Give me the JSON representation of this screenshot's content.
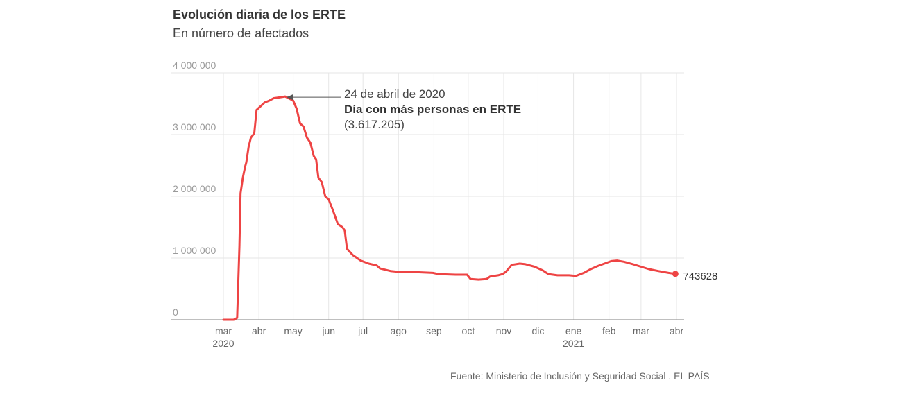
{
  "header": {
    "title": "Evolución diaria de los ERTE",
    "subtitle": "En número de afectados"
  },
  "footer": {
    "source": "Fuente: Ministerio de Inclusión y Seguridad Social . EL PAÍS"
  },
  "colors": {
    "line": "#ee4444",
    "grid": "#e6e6e6",
    "axis": "#999999"
  },
  "chart_data": {
    "type": "line",
    "title": "Evolución diaria de los ERTE",
    "subtitle": "En número de afectados",
    "xlabel": "",
    "ylabel": "",
    "ylim": [
      0,
      4000000
    ],
    "xlim": [
      "2020-03-01",
      "2021-04-01"
    ],
    "grid": true,
    "y_ticks": [
      {
        "value": 0,
        "label": "0"
      },
      {
        "value": 1000000,
        "label": "1 000 000"
      },
      {
        "value": 2000000,
        "label": "2 000 000"
      },
      {
        "value": 3000000,
        "label": "3 000 000"
      },
      {
        "value": 4000000,
        "label": "4 000 000"
      }
    ],
    "x_ticks": [
      {
        "date": "2020-03-01",
        "label": "mar",
        "year": "2020"
      },
      {
        "date": "2020-04-01",
        "label": "abr",
        "year": ""
      },
      {
        "date": "2020-05-01",
        "label": "may",
        "year": ""
      },
      {
        "date": "2020-06-01",
        "label": "jun",
        "year": ""
      },
      {
        "date": "2020-07-01",
        "label": "jul",
        "year": ""
      },
      {
        "date": "2020-08-01",
        "label": "ago",
        "year": ""
      },
      {
        "date": "2020-09-01",
        "label": "sep",
        "year": ""
      },
      {
        "date": "2020-10-01",
        "label": "oct",
        "year": ""
      },
      {
        "date": "2020-11-01",
        "label": "nov",
        "year": ""
      },
      {
        "date": "2020-12-01",
        "label": "dic",
        "year": ""
      },
      {
        "date": "2021-01-01",
        "label": "ene",
        "year": "2021"
      },
      {
        "date": "2021-02-01",
        "label": "feb",
        "year": ""
      },
      {
        "date": "2021-03-01",
        "label": "mar",
        "year": ""
      },
      {
        "date": "2021-04-01",
        "label": "abr",
        "year": ""
      }
    ],
    "series": [
      {
        "points": [
          [
            "2020-03-01",
            0
          ],
          [
            "2020-03-10",
            0
          ],
          [
            "2020-03-13",
            30000
          ],
          [
            "2020-03-15",
            1200000
          ],
          [
            "2020-03-16",
            2050000
          ],
          [
            "2020-03-18",
            2300000
          ],
          [
            "2020-03-20",
            2480000
          ],
          [
            "2020-03-21",
            2550000
          ],
          [
            "2020-03-23",
            2800000
          ],
          [
            "2020-03-25",
            2950000
          ],
          [
            "2020-03-28",
            3020000
          ],
          [
            "2020-03-30",
            3400000
          ],
          [
            "2020-04-02",
            3450000
          ],
          [
            "2020-04-06",
            3520000
          ],
          [
            "2020-04-10",
            3550000
          ],
          [
            "2020-04-14",
            3590000
          ],
          [
            "2020-04-18",
            3600000
          ],
          [
            "2020-04-24",
            3617205
          ],
          [
            "2020-04-28",
            3580000
          ],
          [
            "2020-05-01",
            3550000
          ],
          [
            "2020-05-04",
            3420000
          ],
          [
            "2020-05-07",
            3180000
          ],
          [
            "2020-05-10",
            3130000
          ],
          [
            "2020-05-13",
            2950000
          ],
          [
            "2020-05-16",
            2870000
          ],
          [
            "2020-05-19",
            2650000
          ],
          [
            "2020-05-21",
            2600000
          ],
          [
            "2020-05-23",
            2300000
          ],
          [
            "2020-05-26",
            2230000
          ],
          [
            "2020-05-29",
            2000000
          ],
          [
            "2020-06-01",
            1950000
          ],
          [
            "2020-06-05",
            1760000
          ],
          [
            "2020-06-09",
            1550000
          ],
          [
            "2020-06-13",
            1500000
          ],
          [
            "2020-06-15",
            1450000
          ],
          [
            "2020-06-17",
            1150000
          ],
          [
            "2020-06-22",
            1050000
          ],
          [
            "2020-06-29",
            960000
          ],
          [
            "2020-07-06",
            910000
          ],
          [
            "2020-07-13",
            880000
          ],
          [
            "2020-07-16",
            830000
          ],
          [
            "2020-07-25",
            790000
          ],
          [
            "2020-08-05",
            770000
          ],
          [
            "2020-08-19",
            770000
          ],
          [
            "2020-08-31",
            760000
          ],
          [
            "2020-09-05",
            740000
          ],
          [
            "2020-09-20",
            730000
          ],
          [
            "2020-09-30",
            730000
          ],
          [
            "2020-10-03",
            660000
          ],
          [
            "2020-10-10",
            650000
          ],
          [
            "2020-10-17",
            660000
          ],
          [
            "2020-10-20",
            700000
          ],
          [
            "2020-10-27",
            720000
          ],
          [
            "2020-10-31",
            740000
          ],
          [
            "2020-11-03",
            780000
          ],
          [
            "2020-11-08",
            890000
          ],
          [
            "2020-11-15",
            910000
          ],
          [
            "2020-11-20",
            900000
          ],
          [
            "2020-11-28",
            860000
          ],
          [
            "2020-12-05",
            800000
          ],
          [
            "2020-12-10",
            740000
          ],
          [
            "2020-12-18",
            720000
          ],
          [
            "2020-12-28",
            720000
          ],
          [
            "2021-01-03",
            710000
          ],
          [
            "2021-01-10",
            760000
          ],
          [
            "2021-01-16",
            820000
          ],
          [
            "2021-01-22",
            870000
          ],
          [
            "2021-01-28",
            910000
          ],
          [
            "2021-02-03",
            950000
          ],
          [
            "2021-02-08",
            960000
          ],
          [
            "2021-02-14",
            940000
          ],
          [
            "2021-02-22",
            900000
          ],
          [
            "2021-03-01",
            860000
          ],
          [
            "2021-03-08",
            820000
          ],
          [
            "2021-03-16",
            790000
          ],
          [
            "2021-03-25",
            760000
          ],
          [
            "2021-03-31",
            743628
          ]
        ]
      }
    ],
    "annotations": [
      {
        "date": "2020-04-24",
        "value": 3617205,
        "date_label": "24 de abril de 2020",
        "title": "Día con más personas en ERTE",
        "value_label": "(3.617.205)"
      }
    ],
    "end_label": {
      "date": "2021-03-31",
      "value": 743628,
      "text": "743628"
    }
  }
}
